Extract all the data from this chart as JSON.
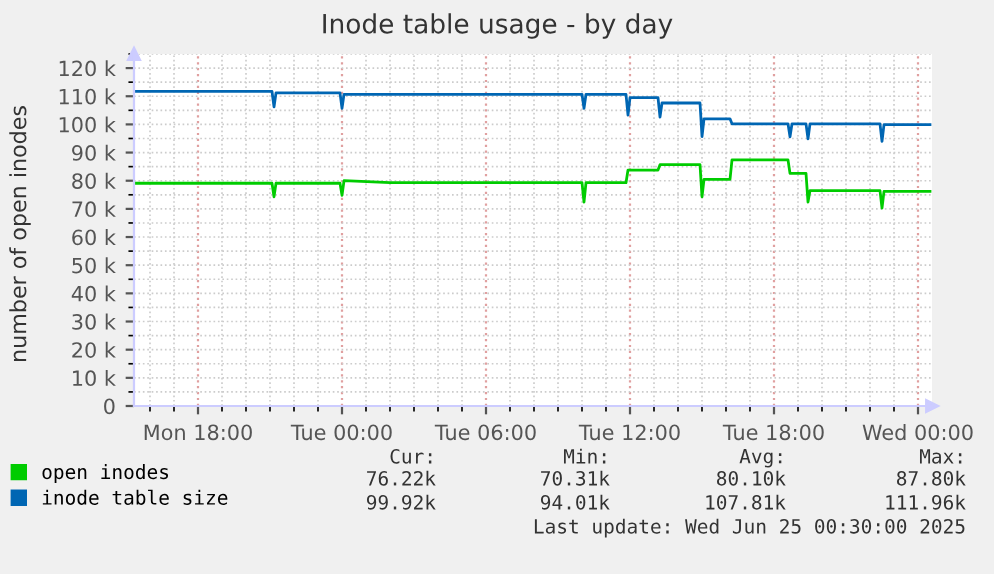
{
  "chart_data": {
    "type": "line",
    "title": "Inode table usage - by day",
    "ylabel": "number of open inodes",
    "x": [
      "2025-06-23T15:20",
      "2025-06-23T21:05",
      "2025-06-23T21:10",
      "2025-06-23T21:15",
      "2025-06-23T23:55",
      "2025-06-24T00:00",
      "2025-06-24T00:05",
      "2025-06-24T02:00",
      "2025-06-24T10:00",
      "2025-06-24T10:05",
      "2025-06-24T10:10",
      "2025-06-24T11:50",
      "2025-06-24T11:55",
      "2025-06-24T12:00",
      "2025-06-24T13:10",
      "2025-06-24T13:15",
      "2025-06-24T13:20",
      "2025-06-24T14:55",
      "2025-06-24T15:00",
      "2025-06-24T15:05",
      "2025-06-24T16:10",
      "2025-06-24T16:15",
      "2025-06-24T18:35",
      "2025-06-24T18:40",
      "2025-06-24T18:45",
      "2025-06-24T19:20",
      "2025-06-24T19:25",
      "2025-06-24T19:30",
      "2025-06-24T22:25",
      "2025-06-24T22:30",
      "2025-06-24T22:35",
      "2025-06-25T00:30"
    ],
    "series": [
      {
        "name": "open inodes",
        "color": "#00cc00",
        "values": [
          79100,
          79100,
          74300,
          79100,
          79100,
          74800,
          80000,
          79300,
          79300,
          72400,
          79300,
          79300,
          83800,
          83800,
          83800,
          85700,
          85700,
          85700,
          74300,
          80500,
          80500,
          87400,
          87400,
          82600,
          82600,
          82600,
          72400,
          76500,
          76500,
          70300,
          76200,
          76200
        ]
      },
      {
        "name": "inode table size",
        "color": "#0066b3",
        "values": [
          111700,
          111700,
          106200,
          111200,
          111200,
          105700,
          110700,
          110700,
          110700,
          105700,
          110700,
          110700,
          103300,
          109500,
          109500,
          102600,
          107600,
          107600,
          95700,
          102000,
          102000,
          100200,
          100200,
          95600,
          100200,
          100200,
          94900,
          100200,
          100200,
          94000,
          99900,
          99900
        ]
      }
    ],
    "xlim": [
      "2025-06-23T15:20",
      "2025-06-25T00:35"
    ],
    "xticks": [
      {
        "value": "2025-06-23T18:00",
        "label": "Mon 18:00"
      },
      {
        "value": "2025-06-24T00:00",
        "label": "Tue 00:00"
      },
      {
        "value": "2025-06-24T06:00",
        "label": "Tue 06:00"
      },
      {
        "value": "2025-06-24T12:00",
        "label": "Tue 12:00"
      },
      {
        "value": "2025-06-24T18:00",
        "label": "Tue 18:00"
      },
      {
        "value": "2025-06-25T00:00",
        "label": "Wed 00:00"
      }
    ],
    "ylim": [
      0,
      125000
    ],
    "yticks": [
      0,
      {
        "value": 10000,
        "label": "10 k"
      },
      {
        "value": 20000,
        "label": "20 k"
      },
      {
        "value": 30000,
        "label": "30 k"
      },
      {
        "value": 40000,
        "label": "40 k"
      },
      {
        "value": 50000,
        "label": "50 k"
      },
      {
        "value": 60000,
        "label": "60 k"
      },
      {
        "value": 70000,
        "label": "70 k"
      },
      {
        "value": 80000,
        "label": "80 k"
      },
      {
        "value": 90000,
        "label": "90 k"
      },
      {
        "value": 100000,
        "label": "100 k"
      },
      {
        "value": 110000,
        "label": "110 k"
      },
      {
        "value": 120000,
        "label": "120 k"
      }
    ],
    "grid": true,
    "legend": "bottom",
    "line_style": "solid",
    "marker": "none",
    "annotations": [
      "Cur:",
      "Min:",
      "Avg:",
      "Max:",
      "76.22k",
      "70.31k",
      "80.10k",
      "87.80k",
      "99.92k",
      "94.01k",
      "107.81k",
      "111.96k",
      "Last update: Wed Jun 25 00:30:00 2025"
    ]
  }
}
